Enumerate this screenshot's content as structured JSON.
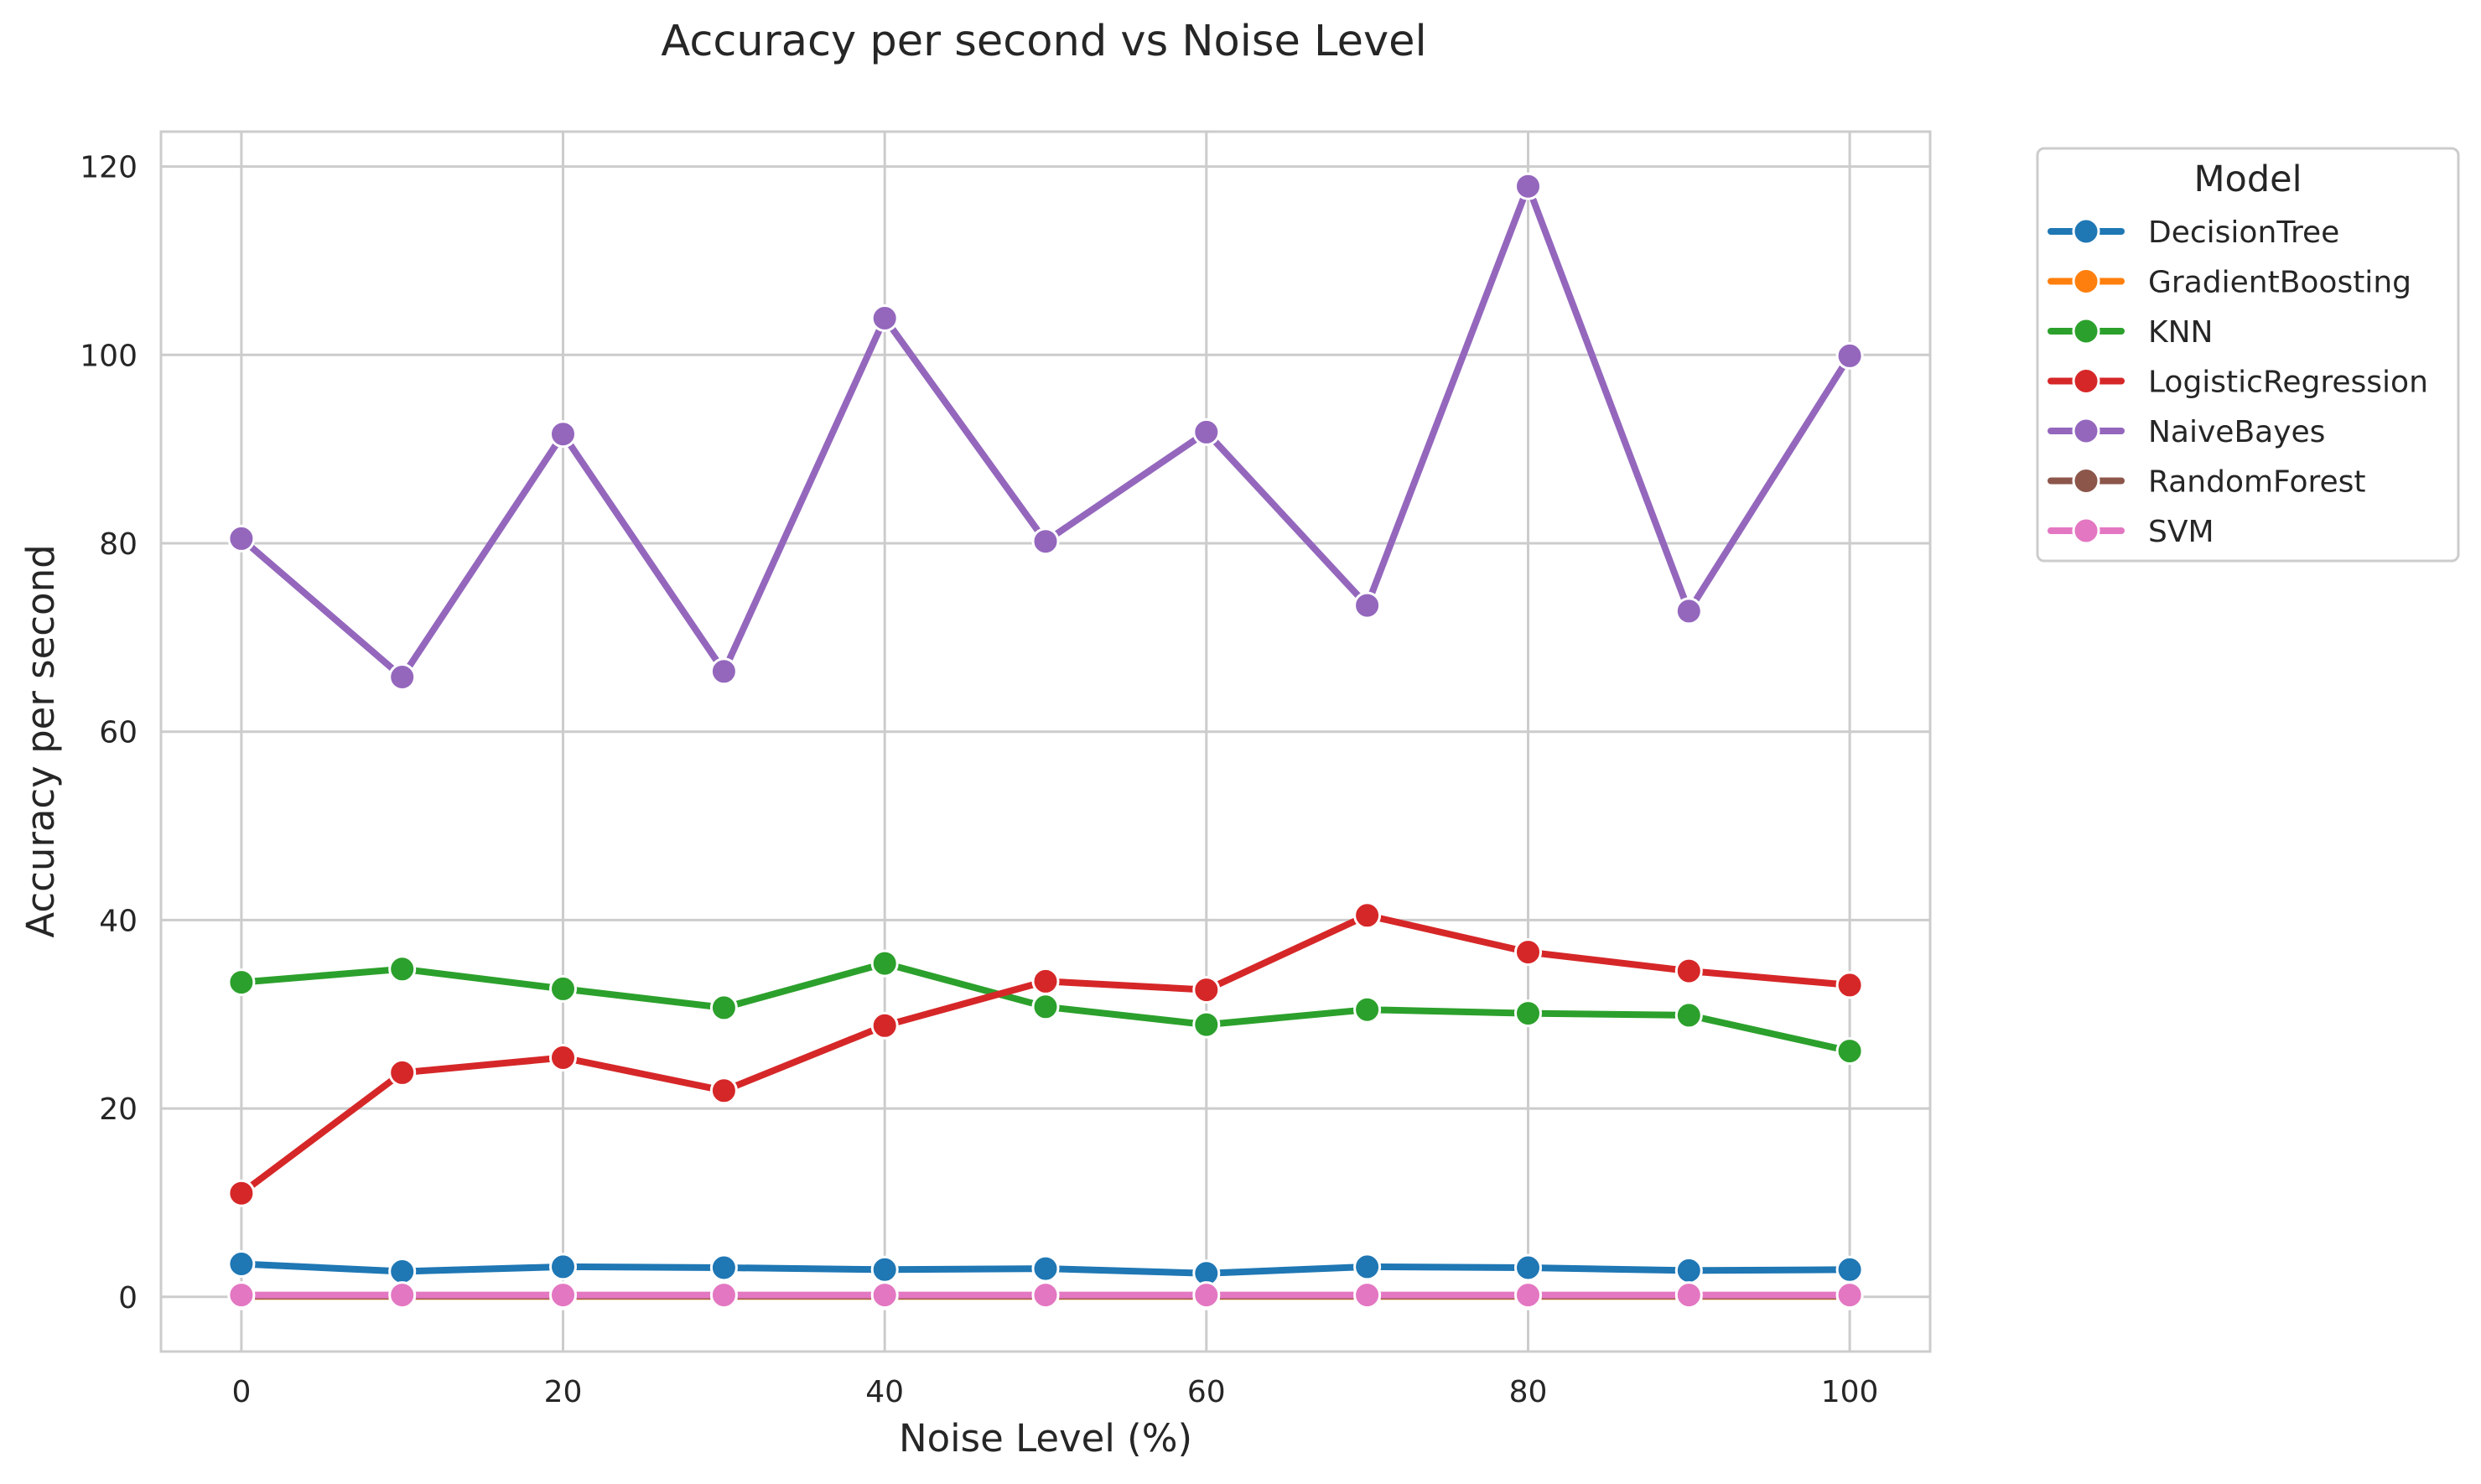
{
  "chart_data": {
    "type": "line",
    "title": "Accuracy per second vs Noise Level",
    "xlabel": "Noise Level (%)",
    "ylabel": "Accuracy per second",
    "x": [
      0,
      10,
      20,
      30,
      40,
      50,
      60,
      70,
      80,
      90,
      100
    ],
    "xticks": [
      0,
      20,
      40,
      60,
      80,
      100
    ],
    "yticks": [
      0,
      20,
      40,
      60,
      80,
      100,
      120
    ],
    "xlim": [
      -5,
      105
    ],
    "ylim": [
      -5.8,
      123.7
    ],
    "grid": true,
    "legend": {
      "title": "Model",
      "position": "outside-right"
    },
    "series": [
      {
        "name": "DecisionTree",
        "color": "#1f77b4",
        "values": [
          3.5,
          2.7,
          3.2,
          3.1,
          2.9,
          3.0,
          2.5,
          3.2,
          3.1,
          2.8,
          2.9
        ]
      },
      {
        "name": "GradientBoosting",
        "color": "#ff7f0e",
        "values": [
          0.05,
          0.05,
          0.05,
          0.05,
          0.05,
          0.05,
          0.05,
          0.05,
          0.05,
          0.05,
          0.05
        ]
      },
      {
        "name": "KNN",
        "color": "#2ca02c",
        "values": [
          33.4,
          34.8,
          32.7,
          30.7,
          35.4,
          30.8,
          28.9,
          30.5,
          30.1,
          29.9,
          26.1
        ]
      },
      {
        "name": "LogisticRegression",
        "color": "#d62728",
        "values": [
          11.0,
          23.8,
          25.4,
          21.9,
          28.8,
          33.5,
          32.6,
          40.5,
          36.6,
          34.6,
          33.1
        ]
      },
      {
        "name": "NaiveBayes",
        "color": "#9467bd",
        "values": [
          80.5,
          65.8,
          91.6,
          66.4,
          103.9,
          80.2,
          91.8,
          73.4,
          117.9,
          72.8,
          99.9
        ]
      },
      {
        "name": "RandomForest",
        "color": "#8c564b",
        "values": [
          0.1,
          0.1,
          0.1,
          0.1,
          0.1,
          0.1,
          0.1,
          0.1,
          0.1,
          0.1,
          0.1
        ]
      },
      {
        "name": "SVM",
        "color": "#e377c2",
        "values": [
          0.2,
          0.2,
          0.2,
          0.2,
          0.2,
          0.2,
          0.2,
          0.2,
          0.2,
          0.2,
          0.2
        ]
      }
    ]
  }
}
